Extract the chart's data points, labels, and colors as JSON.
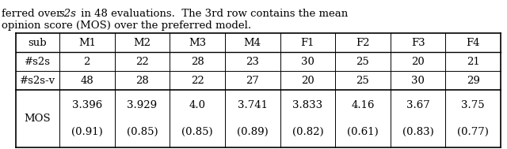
{
  "headers": [
    "sub",
    "M1",
    "M2",
    "M3",
    "M4",
    "F1",
    "F2",
    "F3",
    "F4"
  ],
  "row1_label": "#s2s",
  "row2_label": "#s2s-v",
  "row3_label": "MOS",
  "row1_values": [
    "2",
    "22",
    "28",
    "23",
    "30",
    "25",
    "20",
    "21"
  ],
  "row2_values": [
    "48",
    "28",
    "22",
    "27",
    "20",
    "25",
    "30",
    "29"
  ],
  "row3_values": [
    "3.396",
    "3.929",
    "4.0",
    "3.741",
    "3.833",
    "4.16",
    "3.67",
    "3.75"
  ],
  "row3_sub": [
    "(0.91)",
    "(0.85)",
    "(0.85)",
    "(0.89)",
    "(0.82)",
    "(0.61)",
    "(0.83)",
    "(0.77)"
  ],
  "line1": "ferred over  s2s  in 48 evaluations.  The 3rd row contains the mean",
  "line2": "opinion score (MOS) over the preferred model.",
  "bg_color": "#ffffff",
  "text_color": "#000000",
  "font_size": 9.5,
  "figsize": [
    6.4,
    1.89
  ],
  "dpi": 100
}
